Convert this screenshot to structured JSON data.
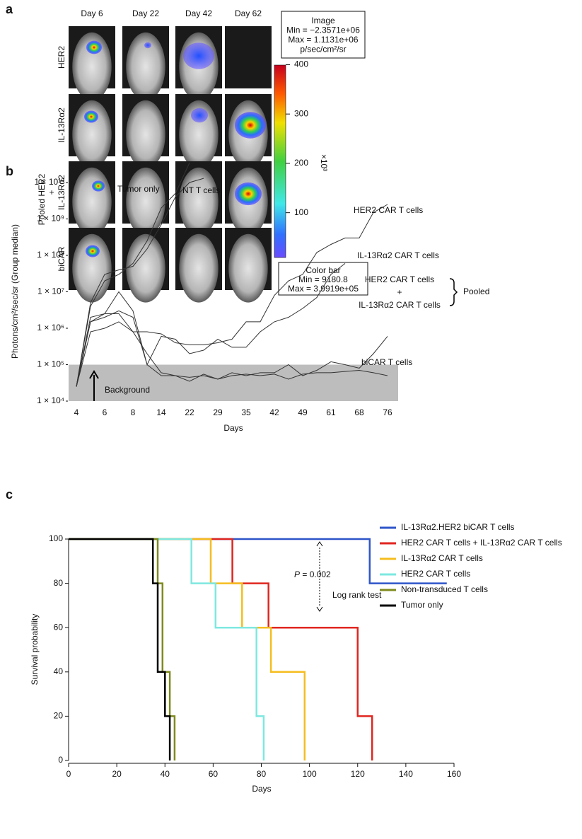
{
  "panel_a": {
    "label": "a",
    "columns": [
      "Day 6",
      "Day 22",
      "Day 42",
      "Day 62"
    ],
    "rows": [
      "HER2",
      "IL-13Rα2",
      "IL-13Rα2",
      "biCAR"
    ],
    "pooled_label": "Pooled HER2",
    "pooled_plus": "+",
    "image_box": [
      "Image",
      "Min = −2.3571e+06",
      "Max = 1.1131e+06",
      "p/sec/cm²/sr"
    ],
    "colorbar_box": [
      "Color bar",
      "Min = 9180.8",
      "Max = 3.9919e+05"
    ]
  },
  "chart_data": [
    {
      "type": "line",
      "panel_label": "b",
      "y_label": "Photons/cm²/sec/sr (Group median)",
      "x_label": "Days",
      "log_y": true,
      "categories": [
        "4",
        null,
        "6",
        null,
        "8",
        null,
        "14",
        null,
        "22",
        null,
        "29",
        null,
        "35",
        null,
        "42",
        null,
        "49",
        null,
        "61",
        null,
        "68",
        null,
        "76"
      ],
      "ylim": [
        10000,
        10000000000
      ],
      "yticks": [
        {
          "value": 10000,
          "label": "1 × 10⁴"
        },
        {
          "value": 100000,
          "label": "1 × 10⁵"
        },
        {
          "value": 1000000,
          "label": "1 × 10⁶"
        },
        {
          "value": 10000000,
          "label": "1 × 10⁷"
        },
        {
          "value": 100000000,
          "label": "1 × 10⁸"
        },
        {
          "value": 1000000000,
          "label": "1 × 10⁹"
        },
        {
          "value": 10000000000,
          "label": "1 × 10¹⁰"
        }
      ],
      "band": [
        10000,
        100000
      ],
      "band_label": "Background",
      "group_label": "Pooled",
      "series": [
        {
          "name": "Tumor only",
          "color": "#333333",
          "values": [
            25000,
            4000000,
            20000000,
            30000000,
            60000000,
            250000000,
            2000000000,
            5000000000,
            35000000000,
            null,
            null,
            null,
            null,
            null,
            null,
            null,
            null,
            null,
            null,
            null,
            null,
            null,
            null
          ]
        },
        {
          "name": "NT T cells",
          "color": "#333333",
          "values": [
            25000,
            5000000,
            30000000,
            40000000,
            50000000,
            150000000,
            700000000,
            4000000000,
            10000000000,
            13000000000,
            null,
            null,
            null,
            null,
            null,
            null,
            null,
            null,
            null,
            null,
            null,
            null,
            null
          ]
        },
        {
          "name": "HER2 CAR T cells",
          "color": "#333333",
          "values": [
            25000,
            1500000,
            2500000,
            2500000,
            800000,
            800000,
            700000,
            400000,
            350000,
            350000,
            400000,
            500000,
            1500000,
            1500000,
            8000000,
            20000000,
            30000000,
            120000000,
            200000000,
            300000000,
            300000000,
            1500000000,
            2500000000
          ]
        },
        {
          "name": "IL-13Rα2 CAR T cells",
          "color": "#333333",
          "values": [
            25000,
            1500000,
            2000000,
            3000000,
            2000000,
            100000,
            600000,
            500000,
            200000,
            250000,
            500000,
            300000,
            300000,
            800000,
            1500000,
            2000000,
            3500000,
            7000000,
            30000000,
            60000000,
            null,
            null,
            null
          ]
        },
        {
          "name": [
            "HER2 CAR T cells",
            "+",
            "IL-13Rα2 CAR T cells"
          ],
          "color": "#333333",
          "values": [
            25000,
            2000000,
            2500000,
            10000000,
            3000000,
            100000,
            50000,
            50000,
            45000,
            50000,
            40000,
            60000,
            50000,
            60000,
            60000,
            100000,
            50000,
            70000,
            120000,
            100000,
            80000,
            200000,
            600000
          ]
        },
        {
          "name": "biCAR T cells",
          "color": "#333333",
          "values": [
            25000,
            800000,
            1000000,
            1500000,
            800000,
            200000,
            60000,
            50000,
            35000,
            55000,
            40000,
            50000,
            55000,
            50000,
            55000,
            40000,
            55000,
            60000,
            60000,
            65000,
            70000,
            60000,
            50000
          ]
        }
      ]
    },
    {
      "type": "step",
      "panel_label": "c",
      "y_label": "Survival probability",
      "x_label": "Days",
      "xlim": [
        0,
        160
      ],
      "xticks": [
        0,
        20,
        40,
        60,
        80,
        100,
        120,
        140,
        160
      ],
      "ylim": [
        0,
        100
      ],
      "yticks": [
        0,
        20,
        40,
        60,
        80,
        100
      ],
      "annotations": [
        "P",
        " = 0.002",
        "Log rank test"
      ],
      "series": [
        {
          "name": "IL-13Rα2.HER2 biCAR T cells",
          "color": "#2e55c9",
          "x": [
            0,
            125,
            157
          ],
          "values": [
            100,
            80,
            80
          ]
        },
        {
          "name": "HER2 CAR T cells + IL-13Rα2 CAR T cells",
          "color": "#e0261f",
          "x": [
            0,
            68,
            83,
            120,
            126
          ],
          "values": [
            100,
            80,
            60,
            20,
            0
          ]
        },
        {
          "name": " IL-13Rα2 CAR T cells",
          "color": "#f5bd1f",
          "x": [
            0,
            59,
            72,
            84,
            98
          ],
          "values": [
            100,
            80,
            60,
            40,
            0
          ]
        },
        {
          "name": "HER2 CAR T cells",
          "color": "#7ee8e0",
          "x": [
            0,
            51,
            61,
            78,
            81
          ],
          "values": [
            100,
            80,
            60,
            20,
            0
          ]
        },
        {
          "name": "Non-transduced T cells",
          "color": "#7f8a1e",
          "x": [
            0,
            37,
            39,
            42,
            44
          ],
          "values": [
            100,
            80,
            40,
            20,
            0
          ]
        },
        {
          "name": "Tumor only",
          "color": "#000000",
          "x": [
            0,
            35,
            37,
            40,
            42
          ],
          "values": [
            100,
            80,
            40,
            20,
            0
          ]
        }
      ]
    },
    {
      "type": "colorbar",
      "ylim": [
        9.1808,
        399.19
      ],
      "yticks": [
        100,
        200,
        300,
        400
      ],
      "axis_label": "×10³"
    }
  ]
}
